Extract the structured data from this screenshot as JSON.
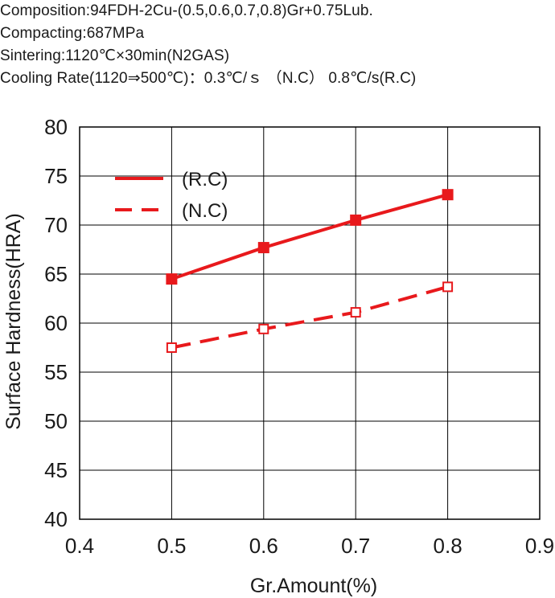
{
  "header": {
    "composition": "Composition:94FDH-2Cu-(0.5,0.6,0.7,0.8)Gr+0.75Lub.",
    "compacting": "Compacting:687MPa",
    "sintering": "Sintering:1120℃×30min(N2GAS)",
    "cooling_rate": "Cooling Rate(1120⇒500℃)：0.3℃/ｓ （N.C）  0.8℃/s(R.C)"
  },
  "colors": {
    "series": "#e8191c",
    "grid": "#000000",
    "text": "#1a1a1a"
  },
  "chart_data": {
    "type": "line",
    "title": "",
    "xlabel": "Gr.Amount(%)",
    "ylabel": "Surface Hardness(HRA)",
    "xlim": [
      0.4,
      0.9
    ],
    "ylim": [
      40,
      80
    ],
    "xticks": [
      0.4,
      0.5,
      0.6,
      0.7,
      0.8,
      0.9
    ],
    "xtick_labels": [
      "0.4",
      "0.5",
      "0.6",
      "0.7",
      "0.8",
      "0.9"
    ],
    "yticks": [
      40,
      45,
      50,
      55,
      60,
      65,
      70,
      75,
      80
    ],
    "ytick_labels": [
      "40",
      "45",
      "50",
      "55",
      "60",
      "65",
      "70",
      "75",
      "80"
    ],
    "grid": true,
    "legend_position": "top-left",
    "x": [
      0.5,
      0.6,
      0.7,
      0.8
    ],
    "series": [
      {
        "name": "(R.C)",
        "values": [
          64.5,
          67.7,
          70.5,
          73.1
        ],
        "line_style": "solid",
        "marker": "filled-square"
      },
      {
        "name": "(N.C)",
        "values": [
          57.5,
          59.4,
          61.1,
          63.7
        ],
        "line_style": "dashed",
        "marker": "open-square"
      }
    ]
  }
}
